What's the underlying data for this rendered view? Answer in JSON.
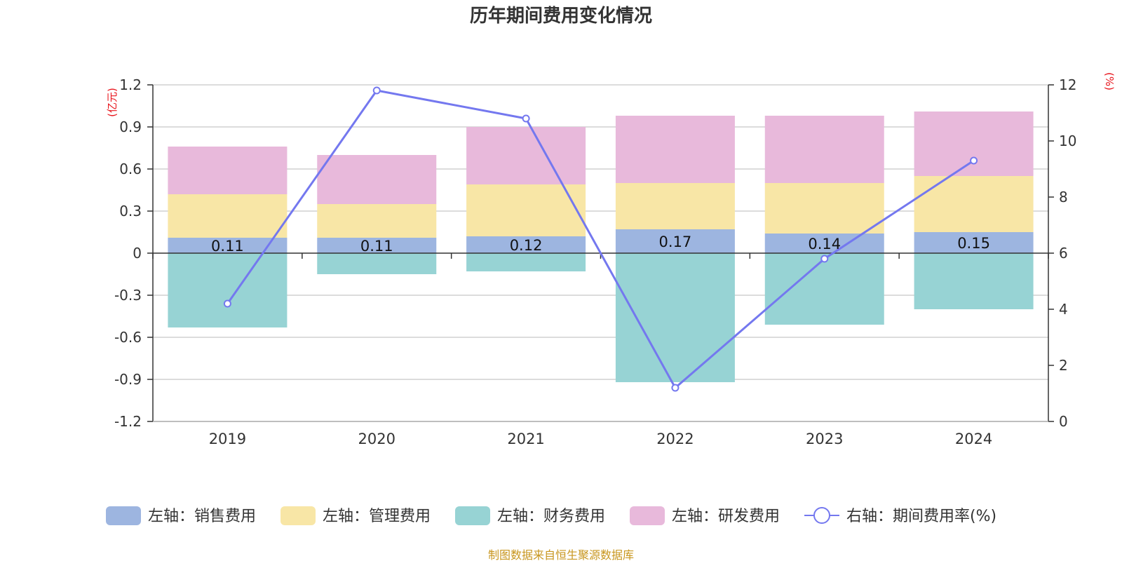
{
  "chart_data": {
    "type": "bar",
    "title": "历年期间费用变化情况",
    "categories": [
      "2019",
      "2020",
      "2021",
      "2022",
      "2023",
      "2024"
    ],
    "left_axis": {
      "unit": "(亿元)",
      "ylim": [
        -1.2,
        1.2
      ],
      "ticks": [
        1.2,
        0.9,
        0.6,
        0.3,
        0,
        -0.3,
        -0.6,
        -0.9,
        -1.2
      ],
      "tick_labels": [
        "1.2",
        "0.9",
        "0.6",
        "0.3",
        "0",
        "-0.3",
        "-0.6",
        "-0.9",
        "-1.2"
      ]
    },
    "right_axis": {
      "unit": "(%)",
      "ylim": [
        0,
        12
      ],
      "ticks": [
        12,
        10,
        8,
        6,
        4,
        2,
        0
      ],
      "tick_labels": [
        "12",
        "10",
        "8",
        "6",
        "4",
        "2",
        "0"
      ]
    },
    "series": [
      {
        "name": "左轴：销售费用",
        "type": "bar",
        "axis": "left",
        "color": "#9db5e0",
        "values": [
          0.11,
          0.11,
          0.12,
          0.17,
          0.14,
          0.15
        ],
        "data_labels": [
          "0.11",
          "0.11",
          "0.12",
          "0.17",
          "0.14",
          "0.15"
        ]
      },
      {
        "name": "左轴：管理费用",
        "type": "bar",
        "axis": "left",
        "color": "#f8e6a6",
        "values": [
          0.31,
          0.24,
          0.37,
          0.33,
          0.36,
          0.4
        ]
      },
      {
        "name": "左轴：财务费用",
        "type": "bar",
        "axis": "left",
        "color": "#97d3d4",
        "values": [
          -0.53,
          -0.15,
          -0.13,
          -0.92,
          -0.51,
          -0.4
        ]
      },
      {
        "name": "左轴：研发费用",
        "type": "bar",
        "axis": "left",
        "color": "#e8b9db",
        "values": [
          0.34,
          0.35,
          0.41,
          0.48,
          0.48,
          0.46
        ]
      },
      {
        "name": "右轴：期间费用率(%)",
        "type": "line",
        "axis": "right",
        "color": "#7478ef",
        "values": [
          4.2,
          11.8,
          10.8,
          1.2,
          5.8,
          9.3
        ]
      }
    ],
    "grid": true,
    "legend_position": "bottom"
  },
  "source_note": "制图数据来自恒生聚源数据库"
}
